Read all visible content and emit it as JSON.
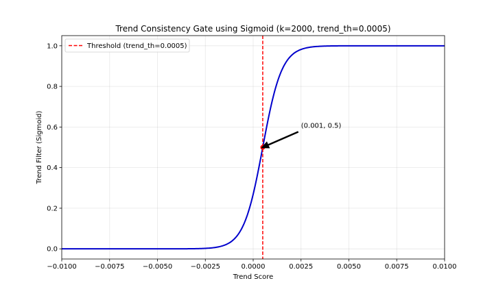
{
  "chart_data": {
    "type": "line",
    "title": "Trend Consistency Gate using Sigmoid (k=2000, trend_th=0.0005)",
    "xlabel": "Trend Score",
    "ylabel": "Trend Filter (Sigmoid)",
    "xlim": [
      -0.01,
      0.01
    ],
    "ylim": [
      -0.05,
      1.05
    ],
    "x_ticks": [
      -0.01,
      -0.0075,
      -0.005,
      -0.0025,
      0.0,
      0.0025,
      0.005,
      0.0075,
      0.01
    ],
    "x_tick_labels": [
      "−0.0100",
      "−0.0075",
      "−0.0050",
      "−0.0025",
      "0.0000",
      "0.0025",
      "0.0050",
      "0.0075",
      "0.0100"
    ],
    "y_ticks": [
      0.0,
      0.2,
      0.4,
      0.6,
      0.8,
      1.0
    ],
    "y_tick_labels": [
      "0.0",
      "0.2",
      "0.4",
      "0.6",
      "0.8",
      "1.0"
    ],
    "grid": true,
    "legend_position": "upper-left",
    "series": [
      {
        "kind": "function",
        "function": "sigmoid",
        "k": 2000,
        "center": 0.0005,
        "x_range": [
          -0.01,
          0.01
        ],
        "color": "#0000cc"
      },
      {
        "name": "Threshold (trend_th=0.0005)",
        "kind": "vline",
        "x": 0.0005,
        "color": "#ff0000",
        "style": "dashed"
      }
    ],
    "marker": {
      "x": 0.0005,
      "y": 0.5,
      "color": "#ff0000"
    },
    "annotation": {
      "text": "(0.001, 0.5)",
      "point": [
        0.0005,
        0.5
      ],
      "text_position": [
        0.0025,
        0.6
      ]
    }
  }
}
